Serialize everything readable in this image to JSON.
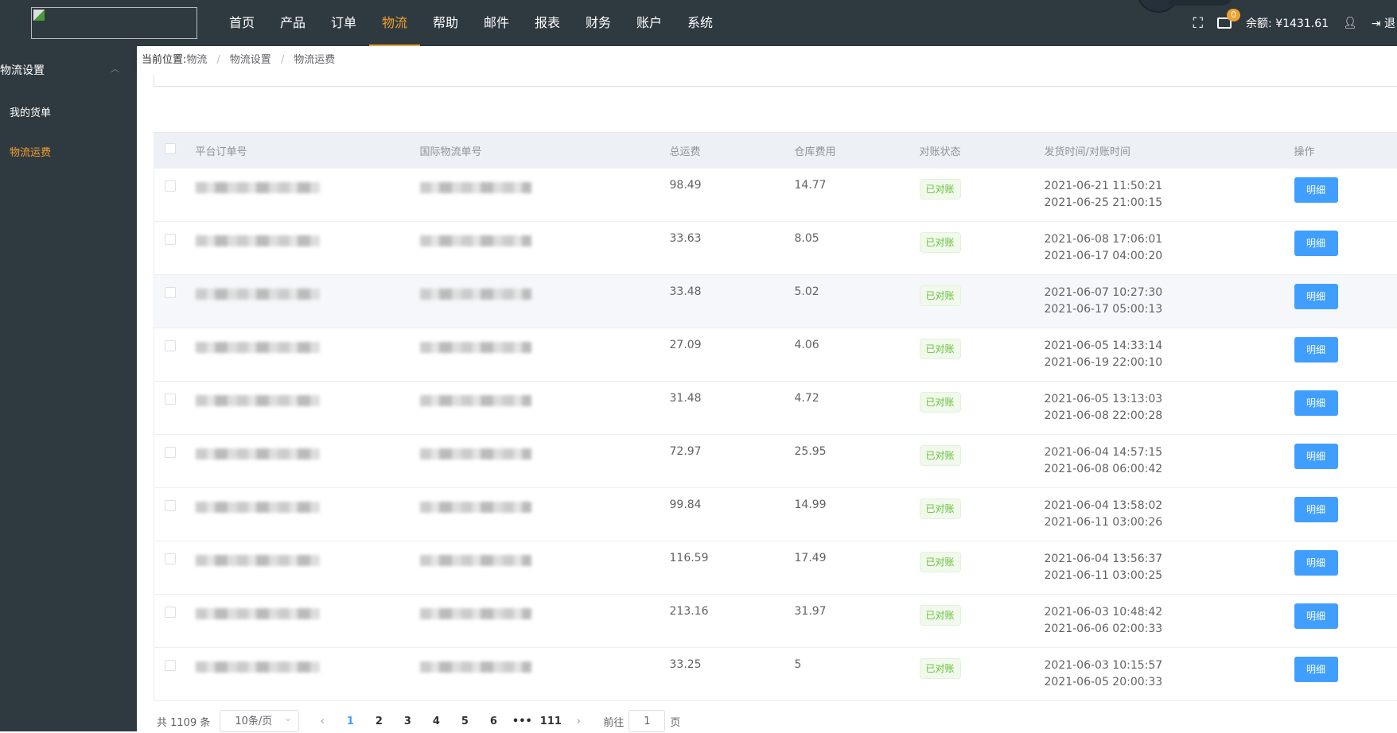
{
  "header": {
    "nav": [
      "首页",
      "产品",
      "订单",
      "物流",
      "帮助",
      "邮件",
      "报表",
      "财务",
      "账户",
      "系统"
    ],
    "active_nav": "物流",
    "mail_count": "0",
    "balance_label": "余额:",
    "balance": "¥1431.61",
    "logout": "退"
  },
  "sidebar": {
    "group": "物流设置",
    "items": [
      {
        "label": "我的货单"
      },
      {
        "label": "物流运费",
        "active": true
      }
    ]
  },
  "breadcrumb": {
    "prefix": "当前位置:",
    "items": [
      "物流",
      "物流设置",
      "物流运费"
    ]
  },
  "table": {
    "columns": [
      "平台订单号",
      "国际物流单号",
      "总运费",
      "仓库费用",
      "对账状态",
      "发货时间/对账时间",
      "操作"
    ],
    "rows": [
      {
        "total": "98.49",
        "warehouse": "14.77",
        "status": "已对账",
        "ship": "2021-06-21 11:50:21",
        "recon": "2021-06-25 21:00:15",
        "action": "明细"
      },
      {
        "total": "33.63",
        "warehouse": "8.05",
        "status": "已对账",
        "ship": "2021-06-08 17:06:01",
        "recon": "2021-06-17 04:00:20",
        "action": "明细"
      },
      {
        "total": "33.48",
        "warehouse": "5.02",
        "status": "已对账",
        "ship": "2021-06-07 10:27:30",
        "recon": "2021-06-17 05:00:13",
        "action": "明细"
      },
      {
        "total": "27.09",
        "warehouse": "4.06",
        "status": "已对账",
        "ship": "2021-06-05 14:33:14",
        "recon": "2021-06-19 22:00:10",
        "action": "明细"
      },
      {
        "total": "31.48",
        "warehouse": "4.72",
        "status": "已对账",
        "ship": "2021-06-05 13:13:03",
        "recon": "2021-06-08 22:00:28",
        "action": "明细"
      },
      {
        "total": "72.97",
        "warehouse": "25.95",
        "status": "已对账",
        "ship": "2021-06-04 14:57:15",
        "recon": "2021-06-08 06:00:42",
        "action": "明细"
      },
      {
        "total": "99.84",
        "warehouse": "14.99",
        "status": "已对账",
        "ship": "2021-06-04 13:58:02",
        "recon": "2021-06-11 03:00:26",
        "action": "明细"
      },
      {
        "total": "116.59",
        "warehouse": "17.49",
        "status": "已对账",
        "ship": "2021-06-04 13:56:37",
        "recon": "2021-06-11 03:00:25",
        "action": "明细"
      },
      {
        "total": "213.16",
        "warehouse": "31.97",
        "status": "已对账",
        "ship": "2021-06-03 10:48:42",
        "recon": "2021-06-06 02:00:33",
        "action": "明细"
      },
      {
        "total": "33.25",
        "warehouse": "5",
        "status": "已对账",
        "ship": "2021-06-03 10:15:57",
        "recon": "2021-06-05 20:00:33",
        "action": "明细"
      }
    ]
  },
  "pagination": {
    "total": "共 1109 条",
    "page_size": "10条/页",
    "pages": [
      "1",
      "2",
      "3",
      "4",
      "5",
      "6",
      "•••",
      "111"
    ],
    "current": "1",
    "goto_label": "前往",
    "goto_value": "1",
    "page_suffix": "页"
  },
  "colors": {
    "header_bg": "#2f3a40",
    "accent": "#f0a030",
    "primary": "#409eff",
    "success": "#67c23a"
  }
}
